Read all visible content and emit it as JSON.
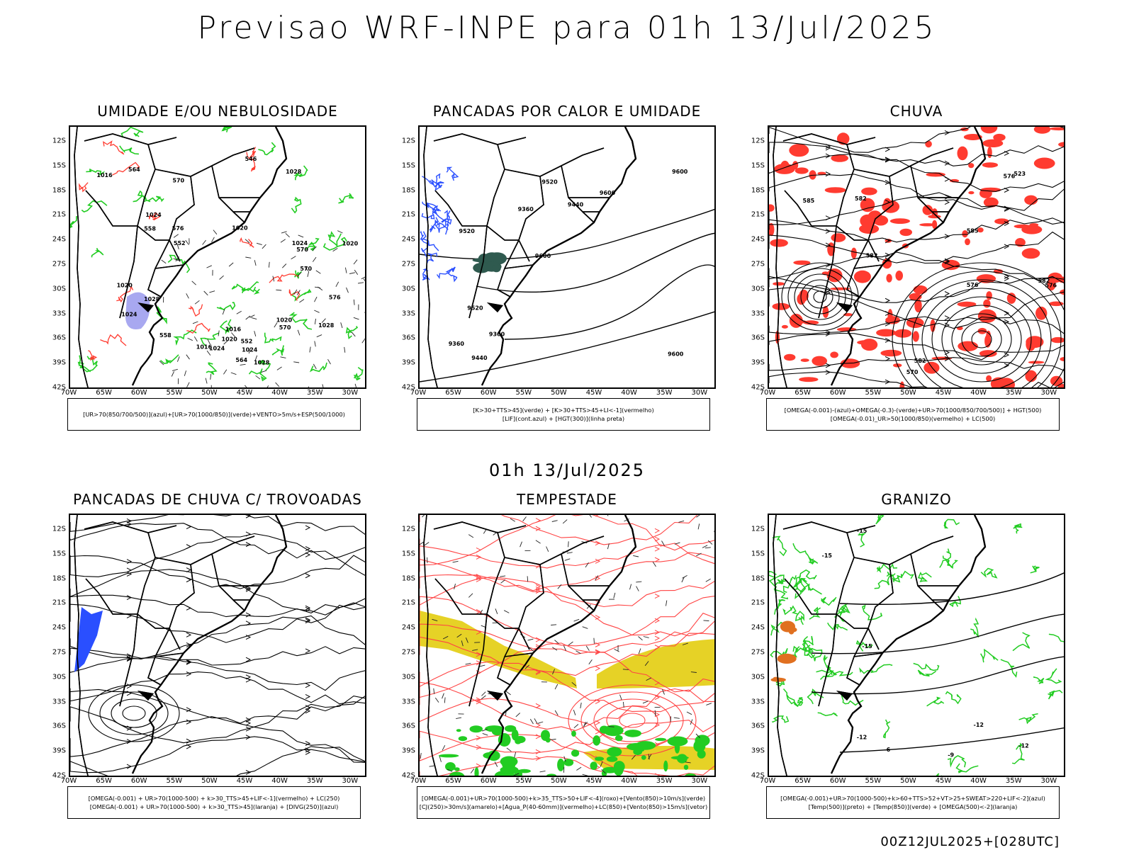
{
  "title": "Previsao WRF-INPE  para 01h 13/Jul/2025",
  "middle_time": "01h 13/Jul/2025",
  "footer": "00Z12JUL2025+[028UTC]",
  "lat_labels": [
    "12S",
    "15S",
    "18S",
    "21S",
    "24S",
    "27S",
    "30S",
    "33S",
    "36S",
    "39S",
    "42S"
  ],
  "lon_labels": [
    "70W",
    "65W",
    "60W",
    "55W",
    "50W",
    "45W",
    "40W",
    "35W",
    "30W"
  ],
  "colors": {
    "border": "#000000",
    "red": "#ff3b30",
    "green": "#22cc22",
    "blue": "#2a4fff",
    "lavender": "#a8a8f0",
    "yellow": "#e6d226",
    "red_line": "#ff4444"
  },
  "panels": [
    {
      "id": "umidade",
      "title": "UMIDADE E/OU NEBULOSIDADE",
      "caption": [
        "[UR>70(850/700/500)](azul)+[UR>70(1000/850)](verde)+VENTO>5m/s+ESP(500/1000)"
      ],
      "contour_labels": [
        "1016",
        "1016",
        "1020",
        "1016",
        "1020",
        "1024",
        "1020",
        "1020",
        "1024",
        "1024",
        "1028",
        "1028",
        "1024",
        "1028",
        "1028",
        "1024",
        "1020",
        "570",
        "576",
        "570",
        "564",
        "570",
        "558",
        "552",
        "552",
        "558",
        "546",
        "564",
        "570",
        "576"
      ]
    },
    {
      "id": "pancadas-calor",
      "title": "PANCADAS POR CALOR E UMIDADE",
      "caption": [
        "[K>30+TTS>45](verde) + [K>30+TTS>45+LI<-1](vermelho)",
        "[LIF](cont.azul) + [HGT(300)](linha preta)"
      ],
      "contour_labels": [
        "9600",
        "9520",
        "9600",
        "9600",
        "9600",
        "9440",
        "9520",
        "9440",
        "9520",
        "9360",
        "9360",
        "9360"
      ]
    },
    {
      "id": "chuva",
      "title": "CHUVA",
      "caption": [
        "[OMEGA(-0.001)-(azul)+OMEGA(-0.3)-(verde)+UR>70(1000/850/700/500)] + HGT(500)",
        "[OMEGA(-0.01)_UR>50(1000/850)(vermelho) + LC(500)"
      ],
      "contour_labels": [
        "585",
        "582",
        "585",
        "582",
        "576",
        "570",
        "576",
        "582",
        "523",
        "576",
        "582"
      ]
    },
    {
      "id": "pancadas-trovoadas",
      "title": "PANCADAS DE CHUVA C/ TROVOADAS",
      "caption": [
        "[OMEGA(-0.001) + UR>70(1000-500) + k>30_TTS>45+LIF<-1](vermelho) + LC(250)",
        "[OMEGA(-0.001) + UR>70(1000-500) + k>30_TTS>45](laranja) + [DIVG(250)](azul)"
      ],
      "contour_labels": []
    },
    {
      "id": "tempestade",
      "title": "TEMPESTADE",
      "caption": [
        "[OMEGA(-0.001)+UR>70(1000-500)+k>35_TTS>50+LIF<-4](roxo)+[Vento(850)>10m/s](verde)",
        "[CJ(250)>30m/s](amarelo)+[Agua_P(40-60mm)](vermelho)+LC(850)+[Vento(850)>15m/s](vetor)"
      ],
      "contour_labels": []
    },
    {
      "id": "granizo",
      "title": "GRANIZO",
      "caption": [
        "[OMEGA(-0.001)+UR>70(1000-500)+k>60+TTS>52+VT>25+SWEAT>220+LIF<-2](azul)",
        "[Temp(500)](preto) + [Temp(850)](verde) + [OMEGA(500)<-2](laranja)"
      ],
      "contour_labels": [
        "-6",
        "-9",
        "-12",
        "-12",
        "-15",
        "-15",
        "-15",
        "-12"
      ]
    }
  ]
}
